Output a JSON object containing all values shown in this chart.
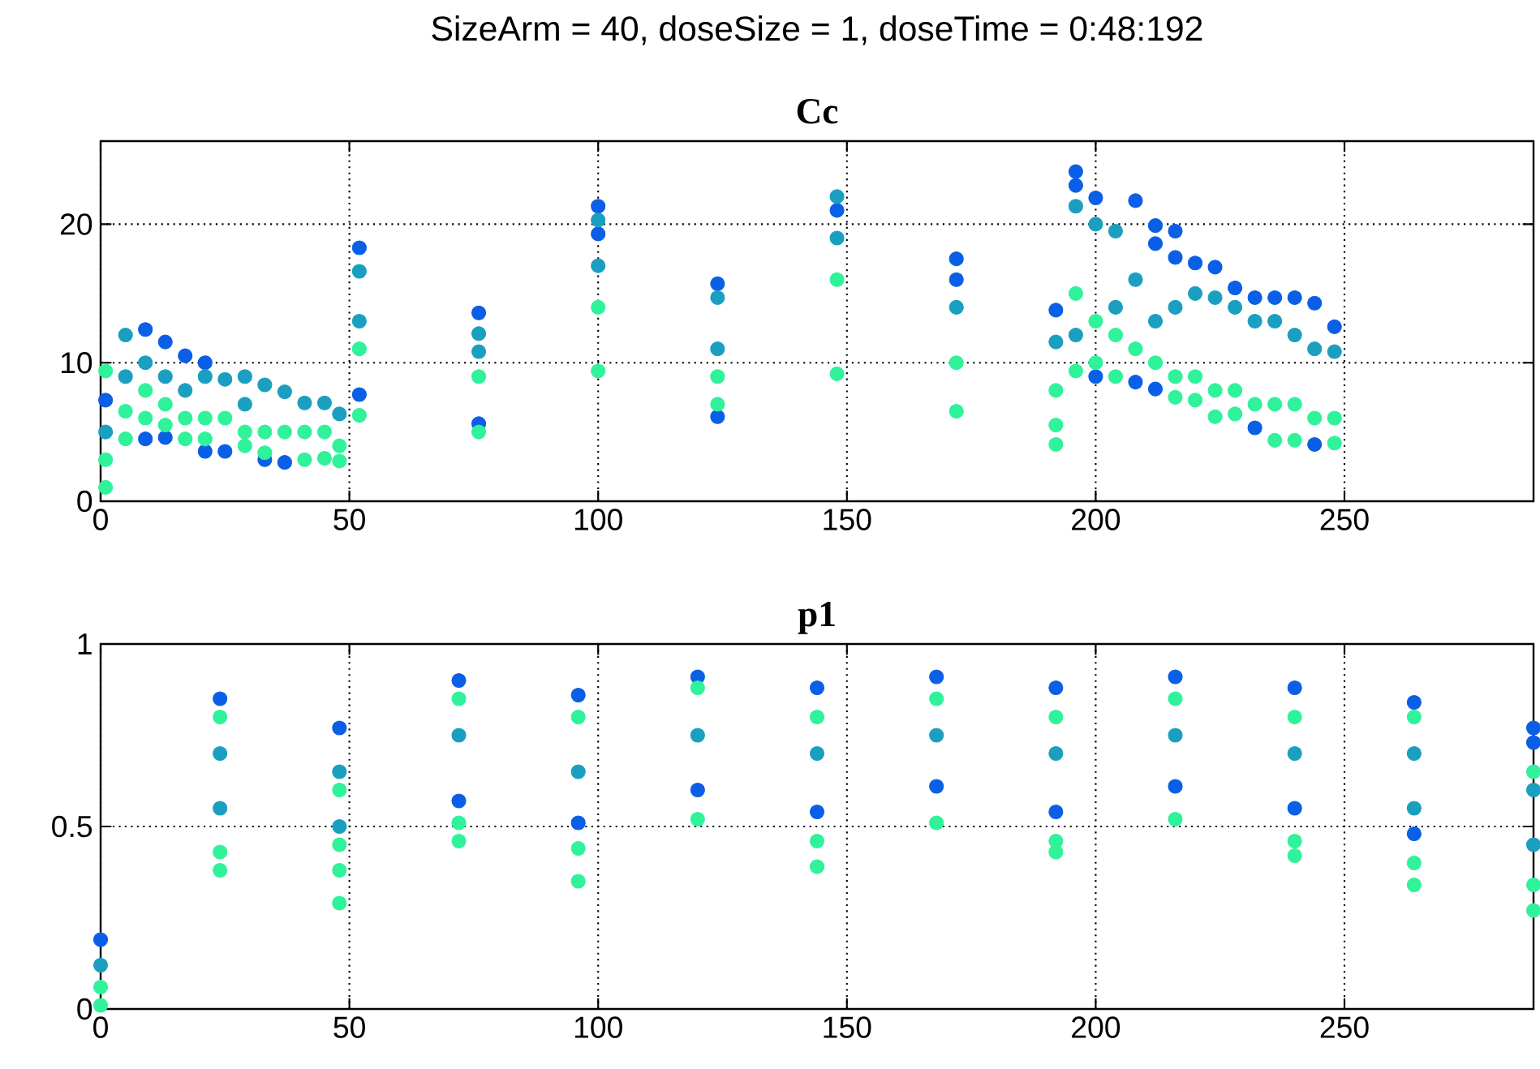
{
  "chart_data": [
    {
      "type": "scatter",
      "title": "SizeArm = 40, doseSize = 1, doseTime = 0:48:192",
      "subtitle": "Cc",
      "xlim": [
        0,
        288
      ],
      "ylim": [
        0,
        26
      ],
      "xticks": [
        0,
        50,
        100,
        150,
        200,
        250
      ],
      "yticks": [
        0,
        10,
        20
      ],
      "grid": true,
      "marker": "circle",
      "series": [
        {
          "color": "#0a5fe6",
          "x": [
            1,
            9,
            9,
            13,
            13,
            17,
            21,
            21,
            25,
            33,
            37,
            52,
            52,
            76,
            76,
            100,
            100,
            124,
            124,
            148,
            172,
            172,
            192,
            196,
            196,
            200,
            200,
            208,
            208,
            212,
            212,
            212,
            216,
            216,
            220,
            224,
            228,
            232,
            232,
            236,
            240,
            244,
            244,
            248
          ],
          "values": [
            7.3,
            12.4,
            4.5,
            11.5,
            4.6,
            10.5,
            10,
            3.6,
            3.6,
            3,
            2.8,
            18.3,
            7.7,
            13.6,
            5.6,
            21.3,
            19.3,
            15.7,
            6.1,
            21,
            17.5,
            16,
            13.8,
            23.8,
            22.8,
            21.9,
            9,
            21.7,
            8.6,
            19.9,
            18.6,
            8.1,
            19.5,
            17.6,
            17.2,
            16.9,
            15.4,
            14.7,
            5.3,
            14.7,
            14.7,
            14.3,
            4.1,
            12.6
          ]
        },
        {
          "color": "#1a9fc0",
          "x": [
            1,
            5,
            5,
            9,
            13,
            17,
            21,
            25,
            29,
            29,
            33,
            37,
            41,
            45,
            48,
            52,
            52,
            76,
            76,
            100,
            100,
            124,
            124,
            148,
            148,
            172,
            192,
            196,
            196,
            200,
            204,
            204,
            208,
            212,
            216,
            220,
            224,
            228,
            232,
            236,
            240,
            244,
            248
          ],
          "values": [
            5,
            12,
            9,
            10,
            9,
            8,
            9,
            8.8,
            9,
            7,
            8.4,
            7.9,
            7.1,
            7.1,
            6.3,
            16.6,
            13,
            12.1,
            10.8,
            20.3,
            17,
            14.7,
            11,
            22,
            19,
            14,
            11.5,
            21.3,
            12,
            20,
            19.5,
            14,
            16,
            13,
            14,
            15,
            14.7,
            14,
            13,
            13,
            12,
            11,
            10.8
          ]
        },
        {
          "color": "#30f29a",
          "x": [
            1,
            1,
            1,
            5,
            5,
            9,
            9,
            13,
            13,
            17,
            17,
            21,
            21,
            25,
            29,
            29,
            33,
            33,
            37,
            41,
            41,
            45,
            45,
            48,
            48,
            52,
            52,
            76,
            76,
            100,
            100,
            124,
            124,
            148,
            148,
            172,
            172,
            192,
            192,
            192,
            196,
            196,
            200,
            200,
            204,
            204,
            208,
            212,
            216,
            216,
            220,
            220,
            224,
            224,
            228,
            228,
            232,
            236,
            236,
            240,
            240,
            244,
            248,
            248
          ],
          "values": [
            9.4,
            3,
            1,
            6.5,
            4.5,
            8,
            6,
            7,
            5.5,
            6,
            4.5,
            6,
            4.5,
            6,
            5,
            4,
            5,
            3.5,
            5,
            5,
            3,
            5,
            3.1,
            4,
            2.9,
            11,
            6.2,
            9,
            5,
            14,
            9.4,
            9,
            7,
            16,
            9.2,
            10,
            6.5,
            8,
            5.5,
            4.1,
            15,
            9.4,
            13,
            10,
            12,
            9,
            11,
            10,
            9,
            7.5,
            9,
            7.3,
            8,
            6.1,
            8,
            6.3,
            7,
            7,
            4.4,
            7,
            4.4,
            6,
            6,
            4.2
          ]
        }
      ]
    },
    {
      "type": "scatter",
      "title": "p1",
      "xlim": [
        0,
        288
      ],
      "ylim": [
        0,
        1
      ],
      "xticks": [
        0,
        50,
        100,
        150,
        200,
        250
      ],
      "yticks": [
        0,
        0.5,
        1
      ],
      "grid": true,
      "marker": "circle",
      "series": [
        {
          "color": "#0a5fe6",
          "x": [
            0,
            24,
            48,
            72,
            72,
            96,
            96,
            120,
            120,
            144,
            144,
            168,
            168,
            192,
            192,
            216,
            216,
            240,
            240,
            264,
            264,
            288,
            288
          ],
          "values": [
            0.19,
            0.85,
            0.77,
            0.9,
            0.57,
            0.86,
            0.51,
            0.91,
            0.6,
            0.88,
            0.54,
            0.91,
            0.61,
            0.88,
            0.54,
            0.91,
            0.61,
            0.88,
            0.55,
            0.84,
            0.48,
            0.77,
            0.73
          ]
        },
        {
          "color": "#1a9fc0",
          "x": [
            0,
            24,
            24,
            48,
            48,
            72,
            96,
            120,
            144,
            168,
            192,
            216,
            240,
            264,
            264,
            288,
            288
          ],
          "values": [
            0.12,
            0.7,
            0.55,
            0.65,
            0.5,
            0.75,
            0.65,
            0.75,
            0.7,
            0.75,
            0.7,
            0.75,
            0.7,
            0.7,
            0.55,
            0.6,
            0.45
          ]
        },
        {
          "color": "#30f29a",
          "x": [
            0,
            0,
            24,
            24,
            24,
            48,
            48,
            48,
            48,
            72,
            72,
            72,
            96,
            96,
            96,
            120,
            120,
            144,
            144,
            144,
            168,
            168,
            192,
            192,
            192,
            216,
            216,
            240,
            240,
            240,
            264,
            264,
            264,
            288,
            288,
            288
          ],
          "values": [
            0.06,
            0.01,
            0.8,
            0.43,
            0.38,
            0.6,
            0.45,
            0.38,
            0.29,
            0.85,
            0.51,
            0.46,
            0.8,
            0.44,
            0.35,
            0.88,
            0.52,
            0.8,
            0.46,
            0.39,
            0.85,
            0.51,
            0.8,
            0.46,
            0.43,
            0.85,
            0.52,
            0.8,
            0.46,
            0.42,
            0.8,
            0.4,
            0.34,
            0.65,
            0.34,
            0.27
          ]
        }
      ]
    }
  ]
}
